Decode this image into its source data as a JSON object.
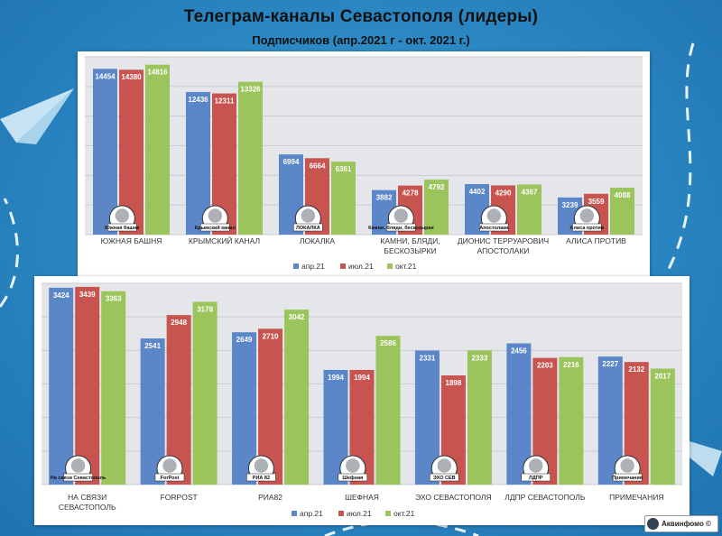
{
  "title": "Телеграм-каналы Севастополя (лидеры)",
  "subtitle": "Подписчиков (апр.2021 г - окт. 2021 г.)",
  "source_label": "Аквинфомо ©",
  "colors": {
    "apr": "#5b86c8",
    "jul": "#c85450",
    "oct": "#9bc45c",
    "background": "#2a86c2"
  },
  "chart_data": [
    {
      "type": "bar",
      "categories": [
        "ЮЖНАЯ БАШНЯ",
        "КРЫМСКИЙ КАНАЛ",
        "ЛОКАЛКА",
        "КАМНИ, БЛЯДИ, БЕСКОЗЫРКИ",
        "ДИОНИС ТЕРРУАРОВИЧ АПОСТОЛАКИ",
        "АЛИСА ПРОТИВ"
      ],
      "series": [
        {
          "name": "апр.21",
          "values": [
            14454,
            12436,
            6994,
            3882,
            4402,
            3239
          ]
        },
        {
          "name": "июл.21",
          "values": [
            14380,
            12311,
            6664,
            4278,
            4290,
            3559
          ]
        },
        {
          "name": "окт.21",
          "values": [
            14816,
            13326,
            6361,
            4792,
            4367,
            4088
          ]
        }
      ],
      "icon_labels": [
        "Южная башня",
        "Крымский канал",
        "ЛОКАЛКА",
        "Камни, бляди, бескозырки",
        "Апостолаки",
        "Алиса против"
      ],
      "ylim": [
        0,
        15500
      ],
      "legend": "bottom",
      "grid": true
    },
    {
      "type": "bar",
      "categories": [
        "НА СВЯЗИ СЕВАСТОПОЛЬ",
        "FORPOST",
        "РИА82",
        "ШЕФНАЯ",
        "ЭХО СЕВАСТОПОЛЯ",
        "ЛДПР СЕВАСТОПОЛЬ",
        "ПРИМЕЧАНИЯ"
      ],
      "series": [
        {
          "name": "апр.21",
          "values": [
            3424,
            2541,
            2649,
            1994,
            2331,
            2456,
            2227
          ]
        },
        {
          "name": "июл.21",
          "values": [
            3439,
            2948,
            2710,
            1994,
            1898,
            2203,
            2132
          ]
        },
        {
          "name": "окт.21",
          "values": [
            3363,
            3178,
            3042,
            2586,
            2333,
            2216,
            2017
          ]
        }
      ],
      "icon_labels": [
        "На связи Севастополь",
        "ForPost",
        "РИА 82",
        "Шефная",
        "ЭХО СЕВ",
        "ЛДПР",
        "Примечания"
      ],
      "ylim": [
        0,
        3500
      ],
      "legend": "bottom",
      "grid": true
    }
  ]
}
